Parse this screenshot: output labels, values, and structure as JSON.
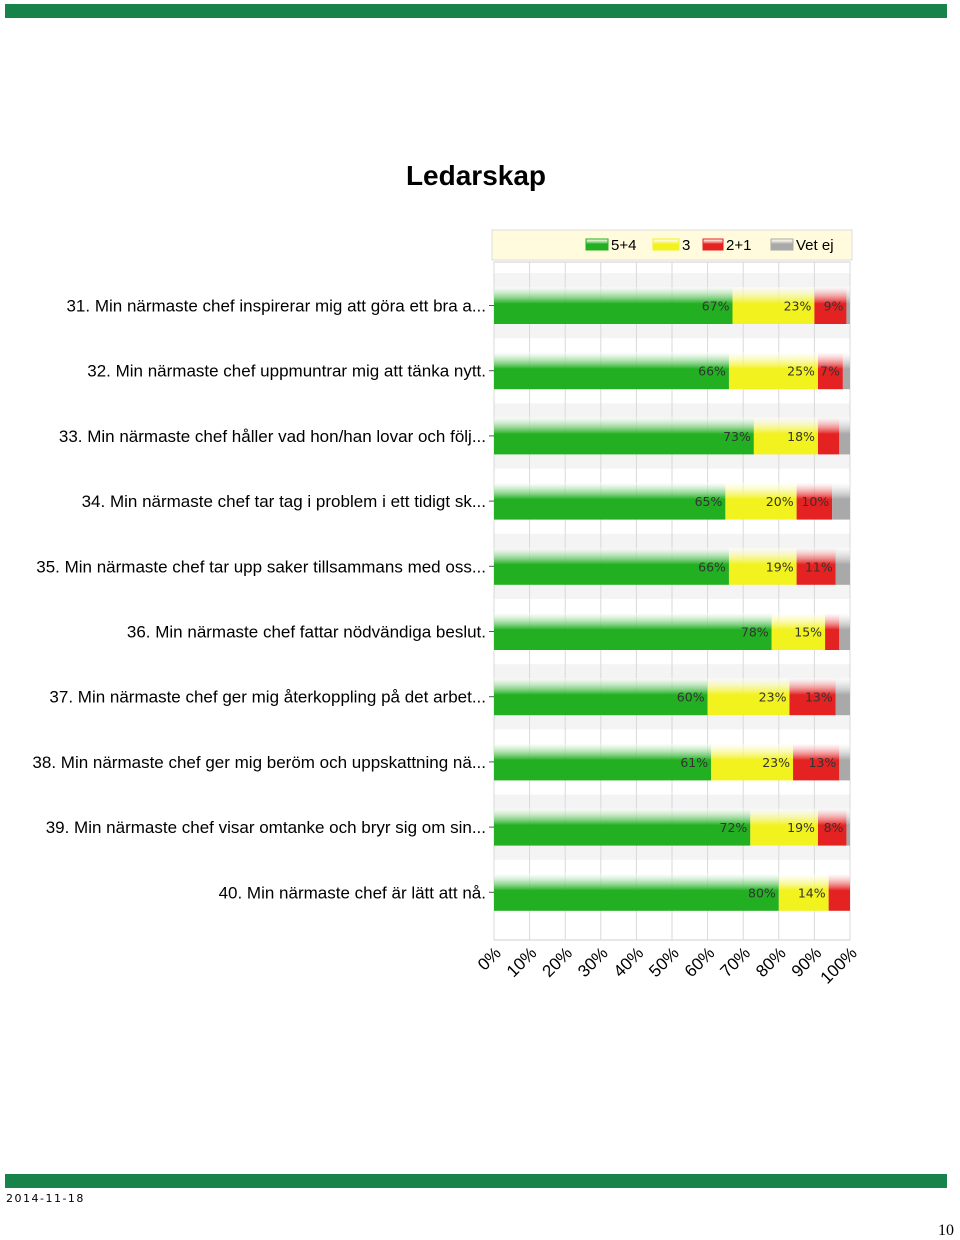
{
  "page": {
    "title": "Ledarskap",
    "date": "2014-11-18",
    "page_number": "10",
    "band_color": "#17834a"
  },
  "chart_data": {
    "type": "bar",
    "orientation": "horizontal",
    "stacked": true,
    "percent": true,
    "xlim": [
      0,
      100
    ],
    "x_ticks": [
      "0%",
      "10%",
      "20%",
      "30%",
      "40%",
      "50%",
      "60%",
      "70%",
      "80%",
      "90%",
      "100%"
    ],
    "grid": true,
    "legend_position": "top",
    "categories": [
      "31. Min närmaste chef inspirerar mig att göra ett bra a...",
      "32. Min närmaste chef uppmuntrar mig att tänka nytt.",
      "33. Min närmaste chef håller vad hon/han lovar och följ...",
      "34. Min närmaste chef tar tag i problem i ett tidigt sk...",
      "35. Min närmaste chef tar upp saker tillsammans med oss...",
      "36. Min närmaste chef fattar nödvändiga beslut.",
      "37. Min närmaste chef ger mig återkoppling på det arbet...",
      "38. Min närmaste chef ger mig beröm och uppskattning nä...",
      "39. Min närmaste chef visar omtanke och bryr sig om sin...",
      "40. Min närmaste chef är lätt att nå."
    ],
    "series": [
      {
        "name": "5+4",
        "color": "#22b022",
        "values": [
          67,
          66,
          73,
          65,
          66,
          78,
          60,
          61,
          72,
          80
        ]
      },
      {
        "name": "3",
        "color": "#f2f21e",
        "values": [
          23,
          25,
          18,
          20,
          19,
          15,
          23,
          23,
          19,
          14
        ]
      },
      {
        "name": "2+1",
        "color": "#e52222",
        "values": [
          9,
          7,
          6,
          10,
          11,
          4,
          13,
          13,
          8,
          6
        ]
      },
      {
        "name": "Vet ej",
        "color": "#a9a9a9",
        "values": [
          1,
          2,
          3,
          5,
          4,
          3,
          4,
          3,
          1,
          0
        ]
      }
    ],
    "data_labels": [
      [
        "67%",
        "23%",
        "9%",
        ""
      ],
      [
        "66%",
        "25%",
        "7%",
        ""
      ],
      [
        "73%",
        "18%",
        "",
        ""
      ],
      [
        "65%",
        "20%",
        "10%",
        ""
      ],
      [
        "66%",
        "19%",
        "11%",
        ""
      ],
      [
        "78%",
        "15%",
        "",
        ""
      ],
      [
        "60%",
        "23%",
        "13%",
        ""
      ],
      [
        "61%",
        "23%",
        "13%",
        ""
      ],
      [
        "72%",
        "19%",
        "8%",
        ""
      ],
      [
        "80%",
        "14%",
        "",
        ""
      ]
    ]
  }
}
